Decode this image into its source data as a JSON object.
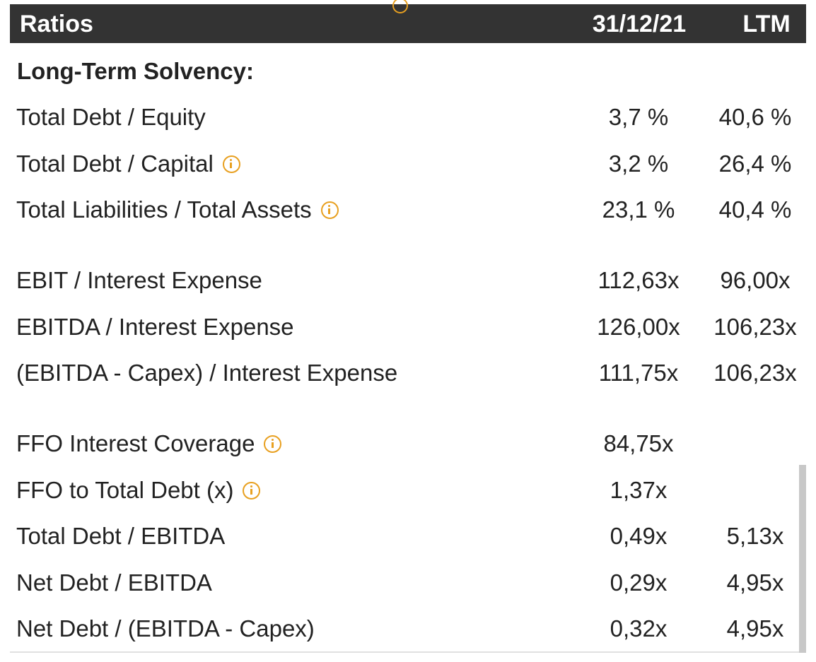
{
  "header": {
    "title": "Ratios",
    "col_a": "31/12/21",
    "col_b": "LTM"
  },
  "section_title": "Long-Term Solvency:",
  "rows": [
    {
      "label": "Total Debt / Equity",
      "info": false,
      "v1": "3,7 %",
      "v2": "40,6 %"
    },
    {
      "label": "Total Debt / Capital",
      "info": true,
      "v1": "3,2 %",
      "v2": "26,4 %"
    },
    {
      "label": "Total Liabilities / Total Assets",
      "info": true,
      "v1": "23,1 %",
      "v2": "40,4 %"
    },
    {
      "label": "EBIT / Interest Expense",
      "info": false,
      "v1": "112,63x",
      "v2": "96,00x"
    },
    {
      "label": "EBITDA / Interest Expense",
      "info": false,
      "v1": "126,00x",
      "v2": "106,23x"
    },
    {
      "label": "(EBITDA - Capex) / Interest Expense",
      "info": false,
      "v1": "111,75x",
      "v2": "106,23x"
    },
    {
      "label": "FFO Interest Coverage",
      "info": true,
      "v1": "84,75x",
      "v2": ""
    },
    {
      "label": "FFO to Total Debt (x)",
      "info": true,
      "v1": "1,37x",
      "v2": ""
    },
    {
      "label": "Total Debt / EBITDA",
      "info": false,
      "v1": "0,49x",
      "v2": "5,13x"
    },
    {
      "label": "Net Debt / EBITDA",
      "info": false,
      "v1": "0,29x",
      "v2": "4,95x"
    },
    {
      "label": "Net Debt / (EBITDA - Capex)",
      "info": false,
      "v1": "0,32x",
      "v2": "4,95x"
    }
  ],
  "colors": {
    "header_bg": "#333333",
    "info_accent": "#e8a020",
    "text": "#222222"
  }
}
